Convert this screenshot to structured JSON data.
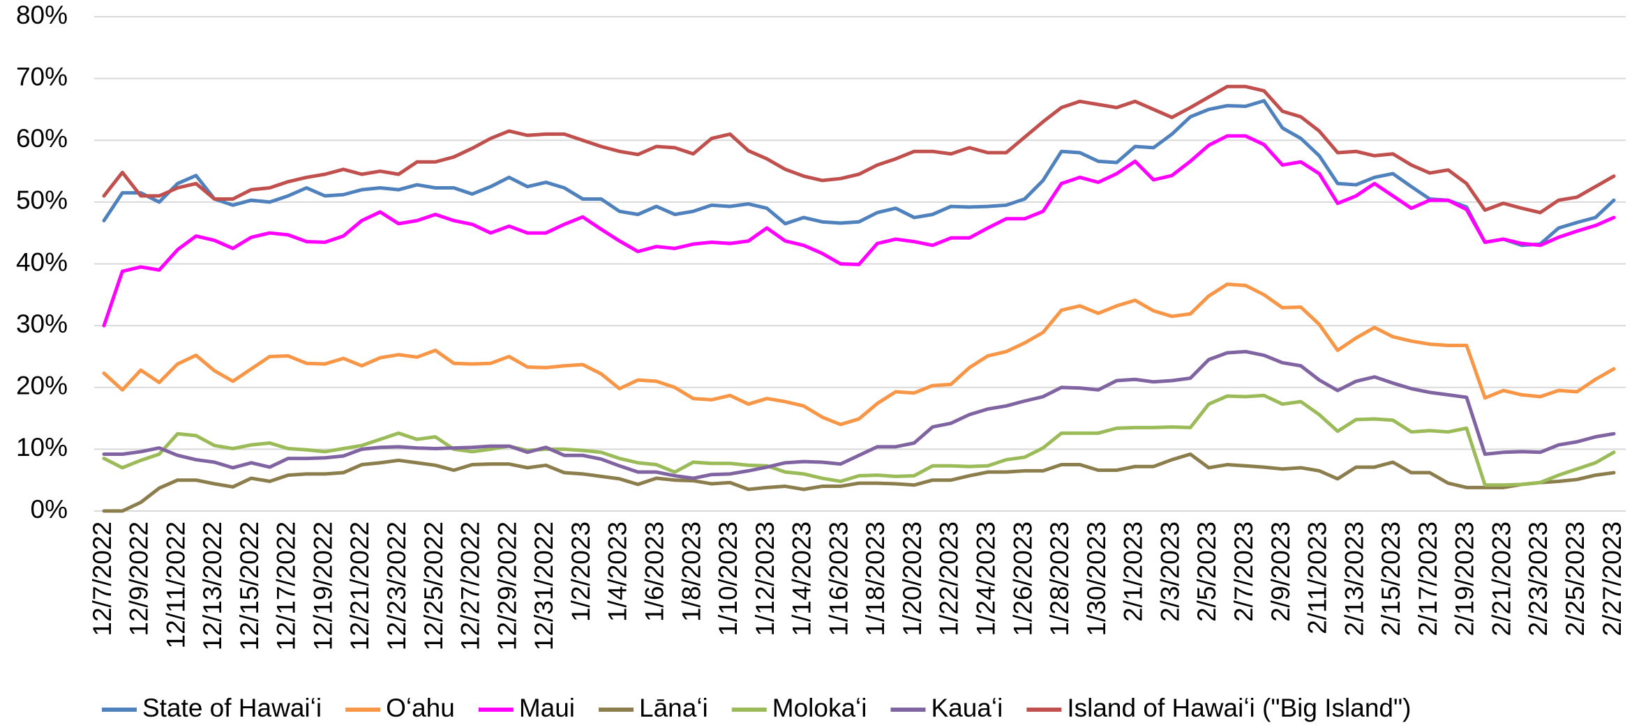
{
  "chart_data": {
    "type": "line",
    "categories": [
      "12/7/2022",
      null,
      "12/9/2022",
      null,
      "12/11/2022",
      null,
      "12/13/2022",
      null,
      "12/15/2022",
      null,
      "12/17/2022",
      null,
      "12/19/2022",
      null,
      "12/21/2022",
      null,
      "12/23/2022",
      null,
      "12/25/2022",
      null,
      "12/27/2022",
      null,
      "12/29/2022",
      null,
      "12/31/2022",
      null,
      "1/2/2023",
      null,
      "1/4/2023",
      null,
      "1/6/2023",
      null,
      "1/8/2023",
      null,
      "1/10/2023",
      null,
      "1/12/2023",
      null,
      "1/14/2023",
      null,
      "1/16/2023",
      null,
      "1/18/2023",
      null,
      "1/20/2023",
      null,
      "1/22/2023",
      null,
      "1/24/2023",
      null,
      "1/26/2023",
      null,
      "1/28/2023",
      null,
      "1/30/2023",
      null,
      "2/1/2023",
      null,
      "2/3/2023",
      null,
      "2/5/2023",
      null,
      "2/7/2023",
      null,
      "2/9/2023",
      null,
      "2/11/2023",
      null,
      "2/13/2023",
      null,
      "2/15/2023",
      null,
      "2/17/2023",
      null,
      "2/19/2023",
      null,
      "2/21/2023",
      null,
      "2/23/2023",
      null,
      "2/25/2023",
      null,
      "2/27/2023"
    ],
    "ylim": [
      0,
      80
    ],
    "yticks": [
      {
        "value": 0,
        "label": "0%"
      },
      {
        "value": 10,
        "label": "10%"
      },
      {
        "value": 20,
        "label": "20%"
      },
      {
        "value": 30,
        "label": "30%"
      },
      {
        "value": 40,
        "label": "40%"
      },
      {
        "value": 50,
        "label": "50%"
      },
      {
        "value": 60,
        "label": "60%"
      },
      {
        "value": 70,
        "label": "70%"
      },
      {
        "value": 80,
        "label": "80%"
      }
    ],
    "grid": true,
    "legend": "bottom",
    "series": [
      {
        "name": "State of Hawaiʻi",
        "color": "#4f81bd",
        "values": [
          47,
          51.5,
          51.5,
          50,
          53,
          54.3,
          50.5,
          49.5,
          50.3,
          50,
          51,
          52.3,
          51,
          51.2,
          52,
          52.3,
          52,
          52.8,
          52.3,
          52.3,
          51.3,
          52.5,
          54,
          52.5,
          53.2,
          52.3,
          50.5,
          50.5,
          48.5,
          48,
          49.3,
          48,
          48.5,
          49.5,
          49.3,
          49.7,
          49,
          46.5,
          47.5,
          46.8,
          46.6,
          46.8,
          48.3,
          49,
          47.5,
          48,
          49.3,
          49.2,
          49.3,
          49.5,
          50.5,
          53.5,
          58.2,
          58,
          56.6,
          56.4,
          59,
          58.8,
          61,
          63.8,
          65,
          65.6,
          65.5,
          66.4,
          62,
          60.3,
          57.5,
          53,
          52.8,
          54,
          54.6,
          52.5,
          50.5,
          50.3,
          49.2,
          43.5,
          44,
          43,
          43.2,
          45.8,
          46.7,
          47.5,
          50.3
        ]
      },
      {
        "name": "Oʻahu",
        "color": "#f79646",
        "values": [
          22.3,
          19.6,
          22.8,
          20.8,
          23.8,
          25.2,
          22.7,
          21,
          23,
          25,
          25.1,
          23.9,
          23.8,
          24.7,
          23.5,
          24.8,
          25.3,
          24.9,
          26,
          23.9,
          23.8,
          23.9,
          25,
          23.3,
          23.2,
          23.5,
          23.7,
          22.2,
          19.8,
          21.2,
          21,
          20,
          18.2,
          18,
          18.7,
          17.3,
          18.2,
          17.7,
          17,
          15.2,
          14,
          14.9,
          17.4,
          19.3,
          19.1,
          20.3,
          20.5,
          23.2,
          25.1,
          25.8,
          27.2,
          28.9,
          32.5,
          33.2,
          32,
          33.2,
          34.1,
          32.4,
          31.5,
          31.9,
          34.8,
          36.7,
          36.5,
          35,
          32.9,
          33,
          30.2,
          26,
          28,
          29.7,
          28.2,
          27.5,
          27,
          26.8,
          26.8,
          18.3,
          19.5,
          18.8,
          18.5,
          19.5,
          19.3,
          21.3,
          23
        ]
      },
      {
        "name": "Maui",
        "color": "#ff00ff",
        "values": [
          30,
          38.8,
          39.5,
          39,
          42.3,
          44.5,
          43.8,
          42.5,
          44.3,
          45,
          44.7,
          43.6,
          43.5,
          44.5,
          47,
          48.4,
          46.5,
          47,
          48,
          47,
          46.4,
          45,
          46.1,
          45,
          45,
          46.4,
          47.6,
          45.6,
          43.7,
          42,
          42.8,
          42.5,
          43.2,
          43.5,
          43.3,
          43.7,
          45.8,
          43.7,
          43,
          41.7,
          40,
          39.9,
          43.3,
          44,
          43.6,
          43,
          44.2,
          44.2,
          45.8,
          47.3,
          47.3,
          48.5,
          53,
          54,
          53.2,
          54.6,
          56.6,
          53.6,
          54.3,
          56.6,
          59.2,
          60.7,
          60.7,
          59.3,
          56,
          56.5,
          54.6,
          49.8,
          51,
          53,
          51,
          49,
          50.3,
          50.3,
          48.8,
          43.5,
          44,
          43.3,
          43,
          44.3,
          45.3,
          46.2,
          47.5
        ]
      },
      {
        "name": "Lānaʻi",
        "color": "#8c7d4c",
        "values": [
          0,
          0,
          1.4,
          3.7,
          5,
          5,
          4.4,
          3.9,
          5.3,
          4.8,
          5.8,
          6,
          6,
          6.2,
          7.5,
          7.8,
          8.2,
          7.8,
          7.4,
          6.6,
          7.5,
          7.6,
          7.6,
          7,
          7.4,
          6.2,
          6,
          5.6,
          5.2,
          4.3,
          5.3,
          5,
          4.9,
          4.4,
          4.6,
          3.5,
          3.8,
          4,
          3.5,
          4,
          4,
          4.5,
          4.5,
          4.4,
          4.2,
          5,
          5,
          5.7,
          6.3,
          6.3,
          6.5,
          6.5,
          7.5,
          7.5,
          6.6,
          6.6,
          7.2,
          7.2,
          8.3,
          9.2,
          7,
          7.5,
          7.3,
          7.1,
          6.8,
          7,
          6.5,
          5.2,
          7.1,
          7.1,
          7.9,
          6.2,
          6.2,
          4.5,
          3.8,
          3.8,
          3.8,
          4.3,
          4.6,
          4.8,
          5.1,
          5.8,
          6.2
        ]
      },
      {
        "name": "Molokaʻi",
        "color": "#9bbb59",
        "values": [
          8.5,
          7,
          8.2,
          9.2,
          12.5,
          12.2,
          10.6,
          10.1,
          10.7,
          11,
          10.1,
          9.9,
          9.6,
          10.1,
          10.6,
          11.6,
          12.6,
          11.6,
          12,
          10,
          9.6,
          10,
          10.5,
          9.8,
          10,
          10,
          9.8,
          9.5,
          8.5,
          7.8,
          7.5,
          6.3,
          7.9,
          7.7,
          7.7,
          7.4,
          7.3,
          6.3,
          6,
          5.3,
          4.8,
          5.7,
          5.8,
          5.6,
          5.7,
          7.3,
          7.3,
          7.2,
          7.3,
          8.3,
          8.7,
          10.2,
          12.6,
          12.6,
          12.6,
          13.4,
          13.5,
          13.5,
          13.6,
          13.5,
          17.3,
          18.6,
          18.5,
          18.7,
          17.3,
          17.7,
          15.6,
          12.9,
          14.8,
          14.9,
          14.7,
          12.8,
          13,
          12.8,
          13.4,
          4.2,
          4.2,
          4.3,
          4.6,
          5.8,
          6.8,
          7.8,
          9.5
        ]
      },
      {
        "name": "Kauaʻi",
        "color": "#8064a2",
        "values": [
          9.2,
          9.2,
          9.6,
          10.2,
          9,
          8.3,
          7.9,
          7,
          7.8,
          7.1,
          8.5,
          8.5,
          8.6,
          8.9,
          10,
          10.3,
          10.4,
          10.2,
          10.1,
          10.2,
          10.3,
          10.5,
          10.5,
          9.5,
          10.3,
          9,
          9,
          8.4,
          7.3,
          6.3,
          6.3,
          5.7,
          5.3,
          5.9,
          6,
          6.5,
          7.1,
          7.8,
          8,
          7.9,
          7.6,
          9,
          10.4,
          10.4,
          11,
          13.6,
          14.2,
          15.6,
          16.5,
          17,
          17.8,
          18.5,
          20,
          19.9,
          19.6,
          21.1,
          21.3,
          20.9,
          21.1,
          21.5,
          24.5,
          25.6,
          25.8,
          25.2,
          24,
          23.5,
          21.2,
          19.5,
          21,
          21.7,
          20.7,
          19.8,
          19.2,
          18.8,
          18.4,
          9.2,
          9.5,
          9.6,
          9.5,
          10.7,
          11.2,
          12,
          12.5
        ]
      },
      {
        "name": "Island of Hawaiʻi (\"Big Island\")",
        "color": "#c0504d",
        "values": [
          51,
          54.8,
          51,
          51,
          52.3,
          53,
          50.5,
          50.5,
          52,
          52.3,
          53.3,
          54,
          54.5,
          55.3,
          54.5,
          55,
          54.5,
          56.5,
          56.5,
          57.3,
          58.7,
          60.3,
          61.5,
          60.8,
          61,
          61,
          60,
          59,
          58.2,
          57.7,
          59,
          58.8,
          57.8,
          60.3,
          61,
          58.3,
          57,
          55.3,
          54.2,
          53.5,
          53.8,
          54.5,
          56,
          57,
          58.2,
          58.2,
          57.8,
          58.8,
          58,
          58,
          60.5,
          63,
          65.3,
          66.3,
          65.8,
          65.3,
          66.3,
          65,
          63.7,
          65.3,
          67,
          68.7,
          68.7,
          68,
          64.7,
          63.8,
          61.5,
          58,
          58.2,
          57.5,
          57.8,
          56,
          54.7,
          55.2,
          53,
          48.7,
          49.8,
          49,
          48.3,
          50.3,
          50.8,
          52.5,
          54.2
        ]
      }
    ]
  }
}
